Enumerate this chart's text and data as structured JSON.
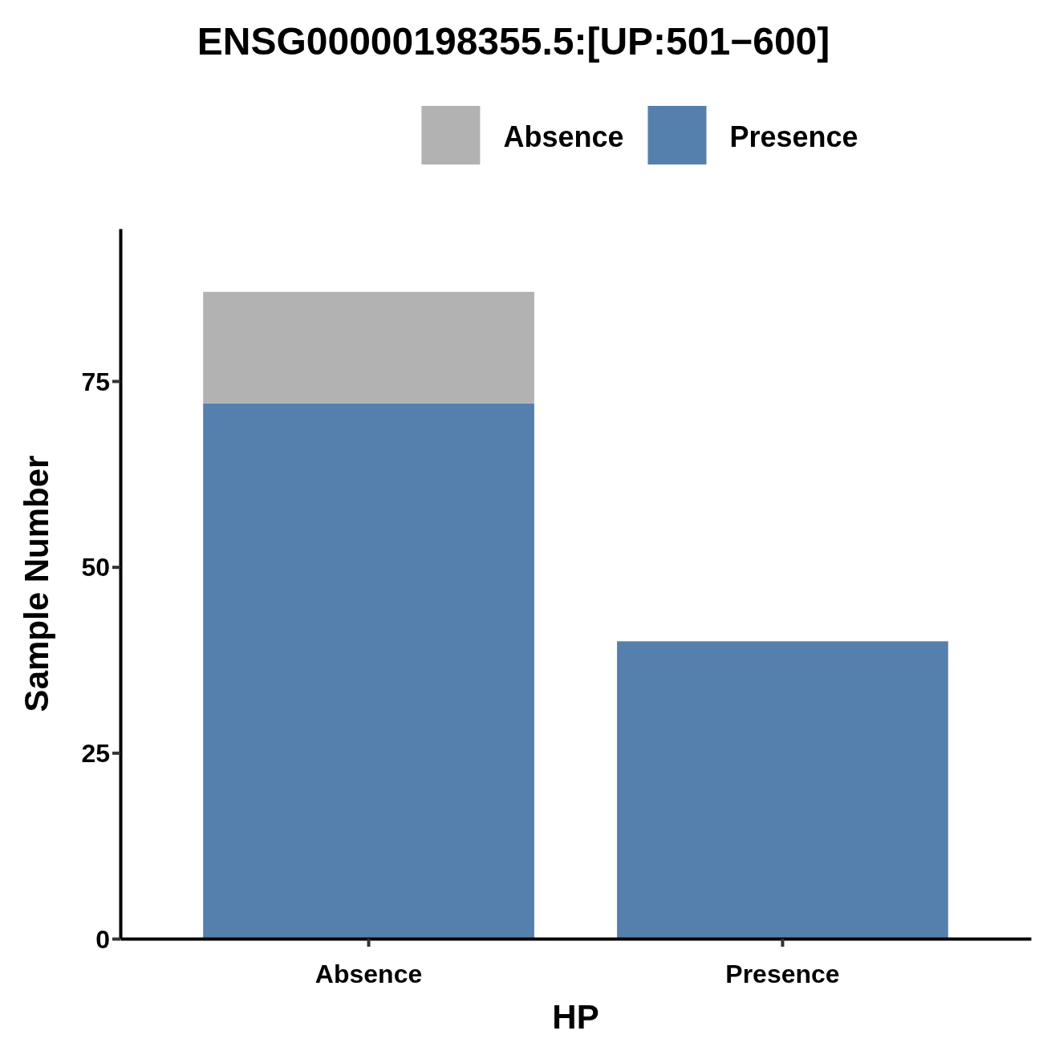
{
  "chart_data": {
    "type": "bar",
    "title": "ENSG00000198355.5:[UP:501−600]",
    "xlabel": "HP",
    "ylabel": "Sample Number",
    "categories": [
      "Absence",
      "Presence"
    ],
    "stacked": true,
    "series": [
      {
        "name": "Presence",
        "color": "#5580ad",
        "values": [
          72,
          40
        ]
      },
      {
        "name": "Absence",
        "color": "#b2b2b2",
        "values": [
          15,
          0
        ]
      }
    ],
    "ylim": [
      0,
      95.5
    ],
    "yticks": [
      0,
      25,
      50,
      75
    ],
    "grid": false,
    "legend": "top"
  }
}
